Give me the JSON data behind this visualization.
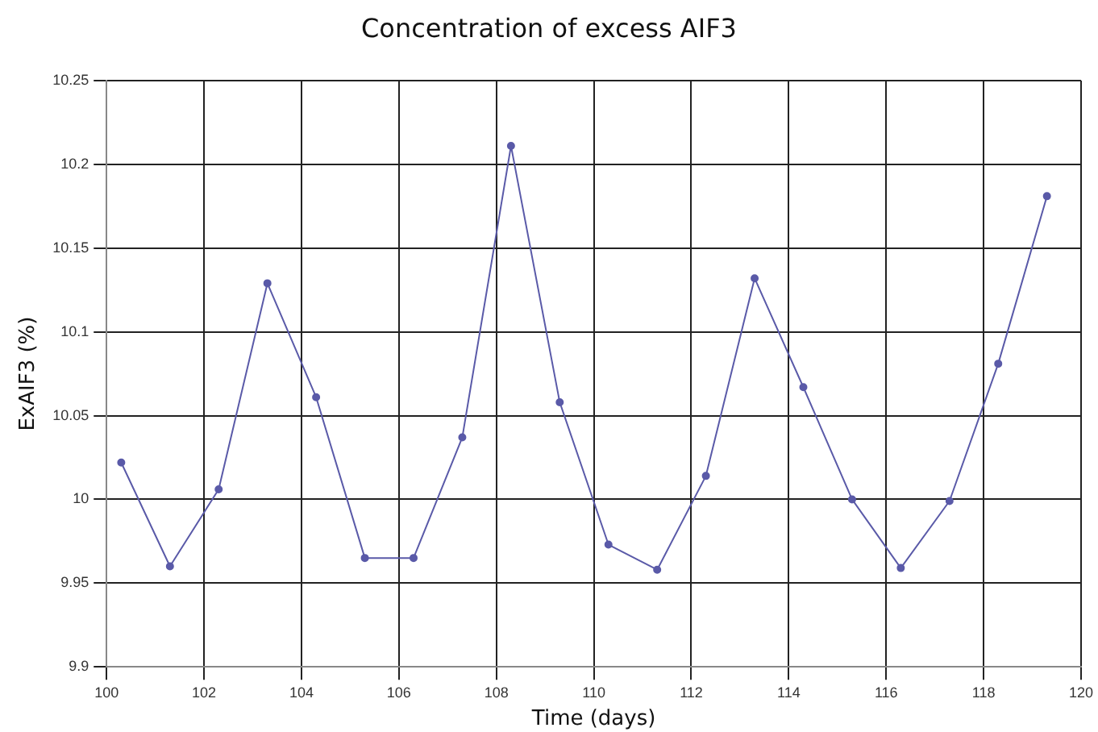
{
  "chart_data": {
    "type": "line",
    "title": "Concentration of excess AIF3",
    "xlabel": "Time (days)",
    "ylabel": "ExAIF3 (%)",
    "x": [
      100.3,
      101.3,
      102.3,
      103.3,
      104.3,
      105.3,
      106.3,
      107.3,
      108.3,
      109.3,
      110.3,
      111.3,
      112.3,
      113.3,
      114.3,
      115.3,
      116.3,
      117.3,
      118.3,
      119.3
    ],
    "series": [
      {
        "color": "#5a5aa8",
        "values": [
          10.022,
          9.96,
          10.006,
          10.129,
          10.061,
          9.965,
          9.965,
          10.037,
          10.211,
          10.058,
          9.973,
          9.958,
          10.014,
          10.132,
          10.067,
          10.0,
          9.959,
          9.999,
          10.081,
          10.181
        ]
      }
    ],
    "xlim": [
      100,
      120
    ],
    "xticks": [
      100,
      102,
      104,
      106,
      108,
      110,
      112,
      114,
      116,
      118,
      120
    ],
    "ylim": [
      9.9,
      10.25
    ],
    "yticks": [
      9.9,
      9.95,
      10,
      10.05,
      10.1,
      10.15,
      10.2,
      10.25
    ],
    "grid": true,
    "legend": false,
    "marker": "circle",
    "line_style": "solid"
  }
}
